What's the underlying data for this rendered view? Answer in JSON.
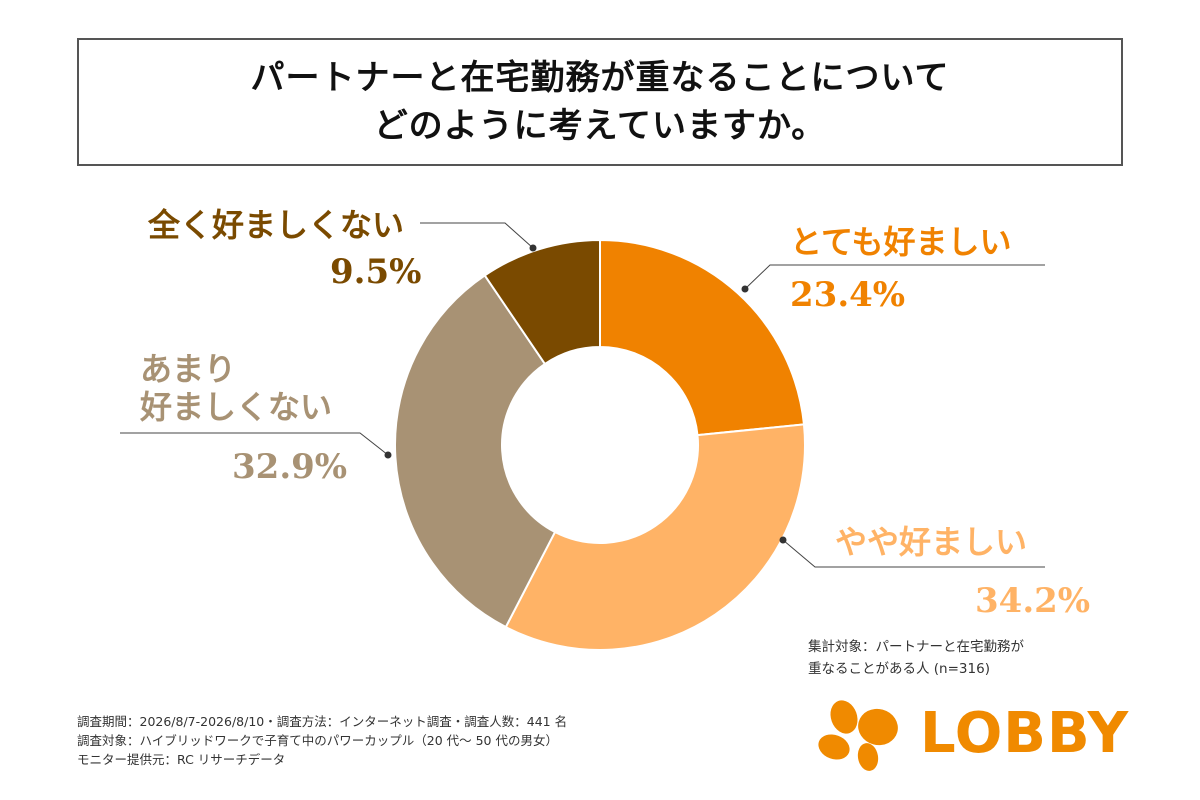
{
  "title": {
    "line1": "パートナーと在宅勤務が重なることについて",
    "line2": "どのように考えていますか。"
  },
  "chart_data": {
    "type": "pie",
    "variant": "donut",
    "slices": [
      {
        "label": "とても好ましい",
        "value": 23.4,
        "value_label": "23.4%",
        "color": "#f08200"
      },
      {
        "label": "やや好ましい",
        "value": 34.2,
        "value_label": "34.2%",
        "color": "#ffb366"
      },
      {
        "label": "あまり\n好ましくない",
        "value": 32.9,
        "value_label": "32.9%",
        "color": "#a89274"
      },
      {
        "label": "全く好ましくない",
        "value": 9.5,
        "value_label": "9.5%",
        "color": "#7a4a00"
      }
    ]
  },
  "note": {
    "line1": "集計対象：パートナーと在宅勤務が",
    "line2": "重なることがある人 (n=316)"
  },
  "footer": {
    "line1": "調査期間：2026/8/7-2026/8/10・調査方法：インターネット調査・調査人数：441 名",
    "line2": "調査対象：ハイブリッドワークで子育て中のパワーカップル（20 代〜 50 代の男女）",
    "line3": "モニター提供元：RC リサーチデータ"
  },
  "logo": {
    "text": "LOBBY",
    "color": "#f08a00"
  }
}
